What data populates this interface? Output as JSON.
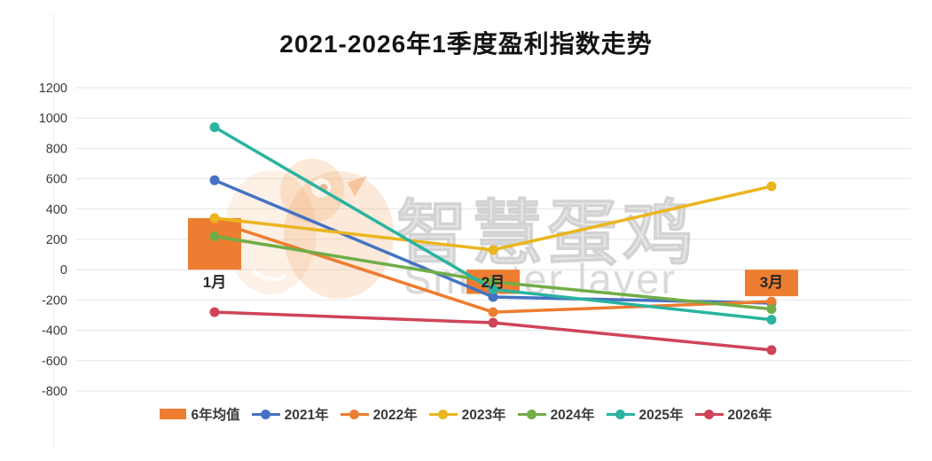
{
  "chart_data": {
    "type": "combo-bar-line",
    "title": "2021-2026年1季度盈利指数走势",
    "categories": [
      "1月",
      "2月",
      "3月"
    ],
    "bar_series": {
      "name": "6年均值",
      "color": "#ed7d31",
      "values": [
        340,
        -160,
        -175
      ]
    },
    "series": [
      {
        "name": "2021年",
        "color": "#4472c4",
        "values": [
          590,
          -180,
          -220
        ]
      },
      {
        "name": "2022年",
        "color": "#ed7d31",
        "values": [
          320,
          -280,
          -210
        ]
      },
      {
        "name": "2023年",
        "color": "#eab51e",
        "values": [
          340,
          130,
          550
        ]
      },
      {
        "name": "2024年",
        "color": "#70ad47",
        "values": [
          220,
          -80,
          -260
        ]
      },
      {
        "name": "2025年",
        "color": "#2ab3a0",
        "values": [
          940,
          -130,
          -330
        ]
      },
      {
        "name": "2026年",
        "color": "#cf4458",
        "values": [
          -280,
          -350,
          -530
        ]
      }
    ],
    "ylim": [
      -800,
      1200
    ],
    "ytick_step": 200,
    "grid": true,
    "legend_position": "bottom",
    "legend": [
      "6年均值",
      "2021年",
      "2022年",
      "2023年",
      "2024年",
      "2025年",
      "2026年"
    ],
    "watermark": {
      "line1": "智慧蛋鸡",
      "line2": "Smarter layer"
    }
  }
}
